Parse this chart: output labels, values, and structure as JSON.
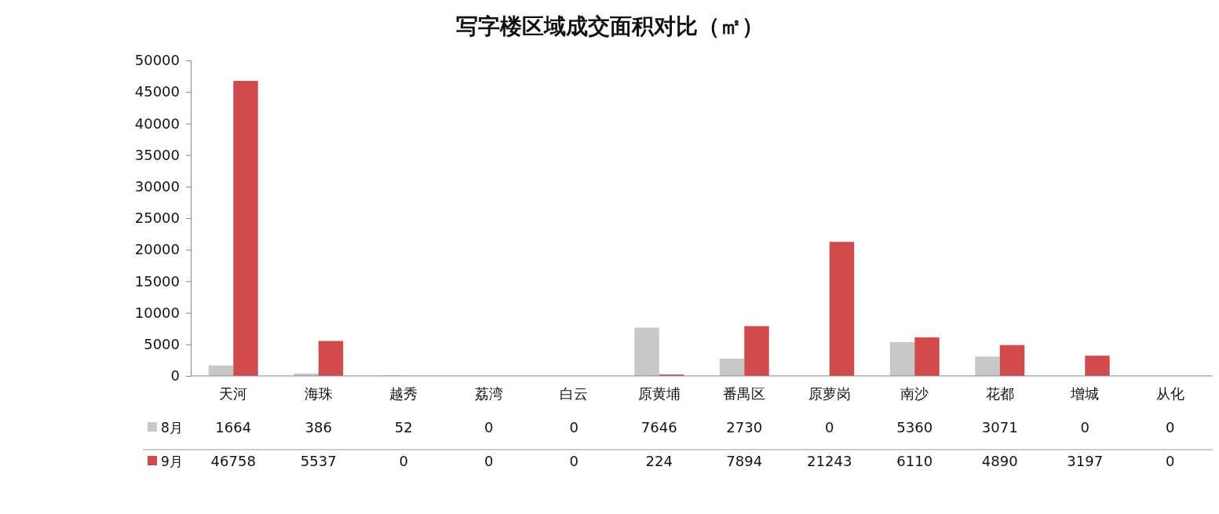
{
  "chart_data": {
    "type": "bar",
    "title": "写字楼区域成交面积对比（㎡）",
    "categories": [
      "天河",
      "海珠",
      "越秀",
      "荔湾",
      "白云",
      "原黄埔",
      "番禺区",
      "原萝岗",
      "南沙",
      "花都",
      "增城",
      "从化"
    ],
    "series": [
      {
        "name": "8月",
        "color": "#c8c8c8",
        "values": [
          1664,
          386,
          52,
          0,
          0,
          7646,
          2730,
          0,
          5360,
          3071,
          0,
          0
        ]
      },
      {
        "name": "9月",
        "color": "#d24b4c",
        "values": [
          46758,
          5537,
          0,
          0,
          0,
          224,
          7894,
          21243,
          6110,
          4890,
          3197,
          0
        ]
      }
    ],
    "ylim": [
      0,
      50000
    ],
    "yticks": [
      0,
      5000,
      10000,
      15000,
      20000,
      25000,
      30000,
      35000,
      40000,
      45000,
      50000
    ],
    "grid": false,
    "legend": "bottom left",
    "data_labels": true
  }
}
